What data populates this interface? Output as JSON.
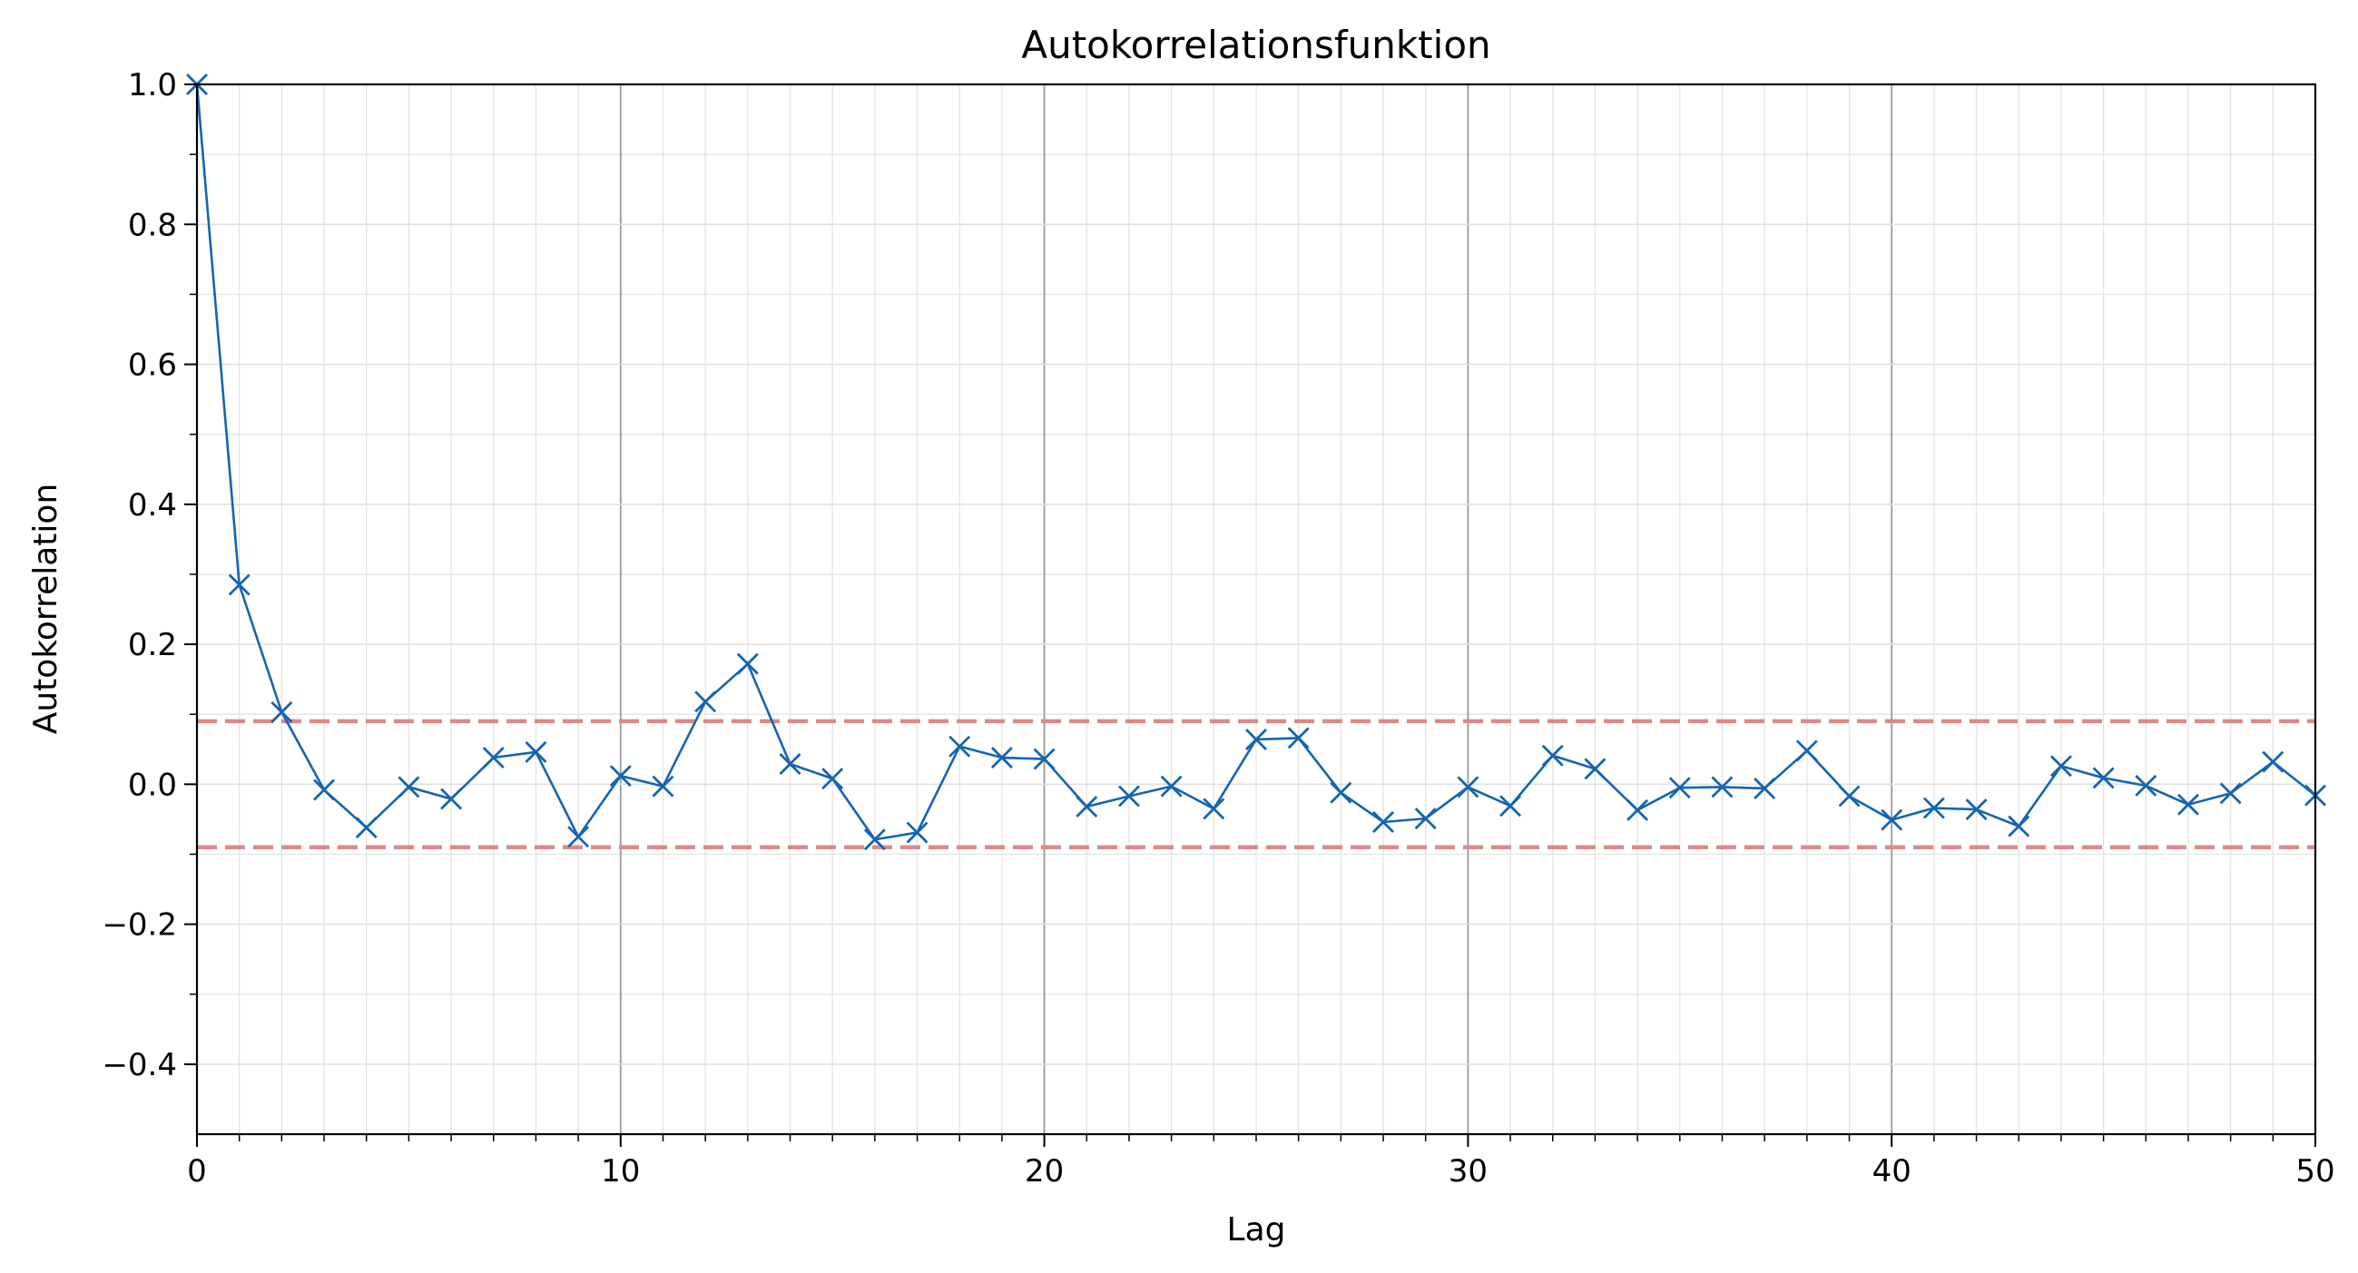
{
  "chart_data": {
    "type": "line",
    "title": "Autokorrelationsfunktion",
    "xlabel": "Lag",
    "ylabel": "Autokorrelation",
    "xlim": [
      0,
      50
    ],
    "ylim": [
      -0.5,
      1.0
    ],
    "x_ticks": [
      0,
      10,
      20,
      30,
      40,
      50
    ],
    "x_tick_labels": [
      "0",
      "10",
      "20",
      "30",
      "40",
      "50"
    ],
    "y_ticks": [
      -0.4,
      -0.2,
      0.0,
      0.2,
      0.4,
      0.6,
      0.8,
      1.0
    ],
    "y_tick_labels": [
      "−0.4",
      "−0.2",
      "0.0",
      "0.2",
      "0.4",
      "0.6",
      "0.8",
      "1.0"
    ],
    "grid": true,
    "minor_grid": true,
    "marker": "x",
    "series": [
      {
        "color": "#1565b0",
        "x": [
          0,
          1,
          2,
          3,
          4,
          5,
          6,
          7,
          8,
          9,
          10,
          11,
          12,
          13,
          14,
          15,
          16,
          17,
          18,
          19,
          20,
          21,
          22,
          23,
          24,
          25,
          26,
          27,
          28,
          29,
          30,
          31,
          32,
          33,
          34,
          35,
          36,
          37,
          38,
          39,
          40,
          41,
          42,
          43,
          44,
          45,
          46,
          47,
          48,
          49,
          50
        ],
        "values": [
          1.0,
          0.285,
          0.103,
          -0.008,
          -0.062,
          -0.004,
          -0.021,
          0.038,
          0.046,
          -0.075,
          0.012,
          -0.003,
          0.118,
          0.172,
          0.029,
          0.008,
          -0.079,
          -0.069,
          0.054,
          0.038,
          0.036,
          -0.032,
          -0.017,
          -0.003,
          -0.035,
          0.064,
          0.066,
          -0.012,
          -0.054,
          -0.049,
          -0.004,
          -0.031,
          0.041,
          0.022,
          -0.037,
          -0.005,
          -0.004,
          -0.006,
          0.048,
          -0.017,
          -0.051,
          -0.034,
          -0.036,
          -0.06,
          0.026,
          0.009,
          -0.002,
          -0.029,
          -0.013,
          0.032,
          -0.016
        ]
      }
    ],
    "confidence_bounds": {
      "upper": 0.09,
      "lower": -0.09,
      "color": "#d98a8a",
      "style": "dashed"
    }
  }
}
